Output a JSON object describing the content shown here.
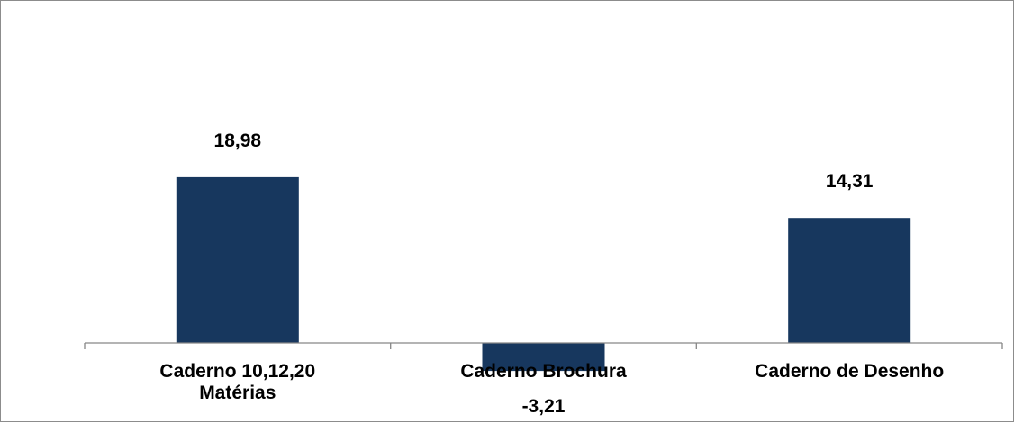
{
  "chart_data": {
    "type": "bar",
    "categories": [
      [
        "Caderno 10,12,20",
        "Matérias"
      ],
      [
        "Caderno Brochura"
      ],
      [
        "Caderno de Desenho"
      ]
    ],
    "values": [
      18.98,
      -3.21,
      14.31
    ],
    "data_labels": [
      "18,98",
      "-3,21",
      "14,31"
    ],
    "title": "",
    "xlabel": "",
    "ylabel": "",
    "ylim": [
      -3.5,
      27
    ],
    "grid": false,
    "legend": "none",
    "bar_color": "#17375e",
    "axis_color": "#868686"
  }
}
